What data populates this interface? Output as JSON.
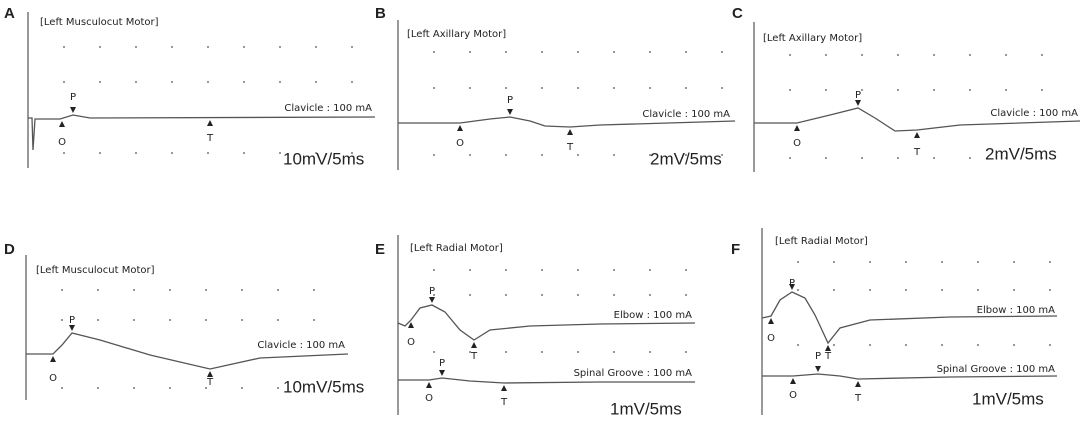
{
  "panels": [
    {
      "letter": "A",
      "title": "[Left Musculocut Motor]",
      "scale": "10mV/5ms",
      "traces": [
        {
          "label": "Clavicle : 100 mA",
          "markers": [
            "O",
            "P",
            "T"
          ]
        }
      ]
    },
    {
      "letter": "B",
      "title": "[Left Axillary Motor]",
      "scale": "2mV/5ms",
      "traces": [
        {
          "label": "Clavicle : 100 mA",
          "markers": [
            "O",
            "P",
            "T"
          ]
        }
      ]
    },
    {
      "letter": "C",
      "title": "[Left Axillary Motor]",
      "scale": "2mV/5ms",
      "traces": [
        {
          "label": "Clavicle : 100 mA",
          "markers": [
            "O",
            "P",
            "T"
          ]
        }
      ]
    },
    {
      "letter": "D",
      "title": "[Left Musculocut Motor]",
      "scale": "10mV/5ms",
      "traces": [
        {
          "label": "Clavicle : 100 mA",
          "markers": [
            "O",
            "P",
            "T"
          ]
        }
      ]
    },
    {
      "letter": "E",
      "title": "[Left Radial Motor]",
      "scale": "1mV/5ms",
      "traces": [
        {
          "label": "Elbow : 100 mA",
          "markers": [
            "O",
            "P",
            "T"
          ]
        },
        {
          "label": "Spinal Groove : 100 mA",
          "markers": [
            "O",
            "P",
            "T"
          ]
        }
      ]
    },
    {
      "letter": "F",
      "title": "[Left Radial Motor]",
      "scale": "1mV/5ms",
      "traces": [
        {
          "label": "Elbow : 100 mA",
          "markers": [
            "O",
            "P",
            "T"
          ]
        },
        {
          "label": "Spinal Groove : 100 mA",
          "markers": [
            "O",
            "P",
            "T"
          ]
        }
      ]
    }
  ]
}
